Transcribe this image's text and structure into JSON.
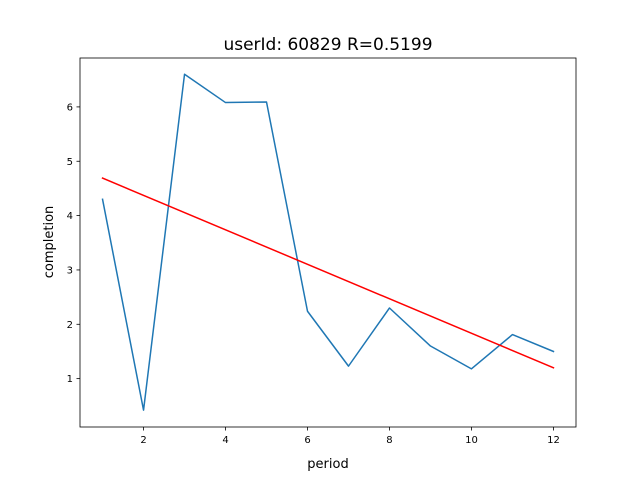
{
  "chart_data": {
    "type": "line",
    "title": "userId: 60829  R=0.5199",
    "xlabel": "period",
    "ylabel": "completion",
    "xlim": [
      0.45,
      12.55
    ],
    "ylim": [
      0.11,
      6.9
    ],
    "xticks": [
      2,
      4,
      6,
      8,
      10,
      12
    ],
    "yticks": [
      1,
      2,
      3,
      4,
      5,
      6
    ],
    "grid": false,
    "legend": "none",
    "series": [
      {
        "color": "#1f77b4",
        "x": [
          1,
          2,
          3,
          4,
          5,
          6,
          7,
          8,
          9,
          10,
          11,
          12
        ],
        "y": [
          4.3,
          0.42,
          6.6,
          6.08,
          6.09,
          2.24,
          1.23,
          2.3,
          1.6,
          1.18,
          1.81,
          1.5
        ]
      },
      {
        "color": "#ff0000",
        "x": [
          1,
          12
        ],
        "y": [
          4.69,
          1.2
        ]
      }
    ]
  }
}
